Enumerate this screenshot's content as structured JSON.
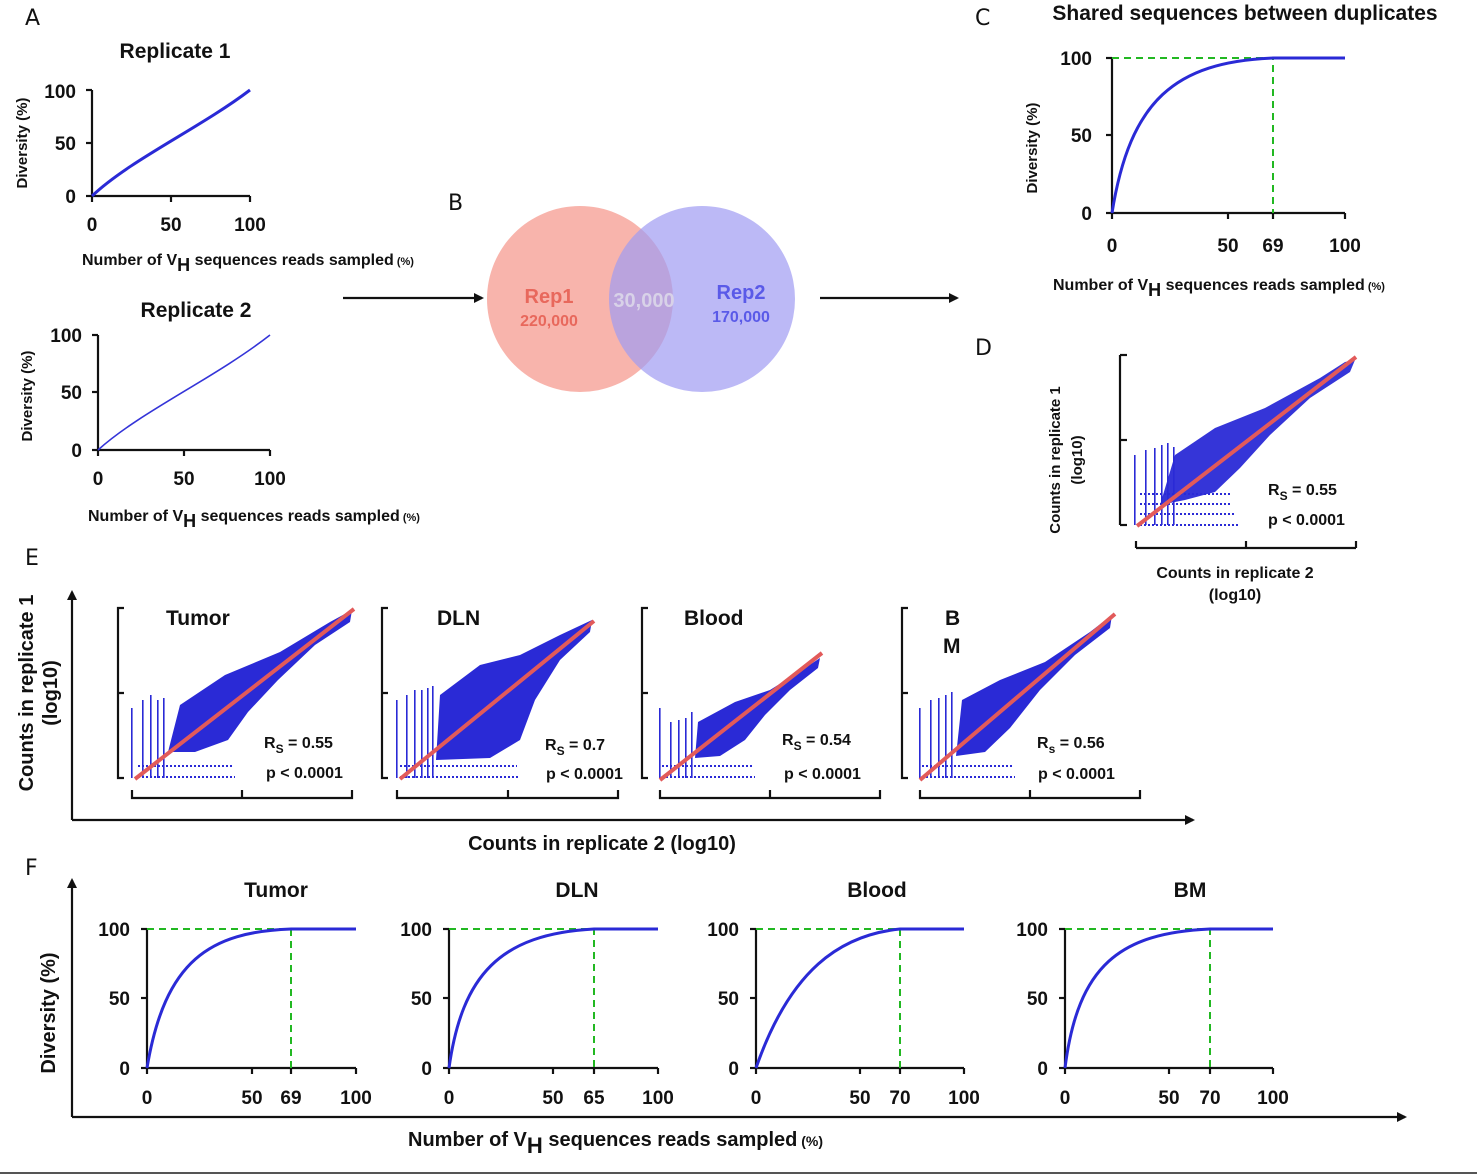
{
  "figure": {
    "panel_labels": [
      "A",
      "B",
      "C",
      "D",
      "E",
      "F"
    ],
    "colors": {
      "curve": "#2a2ad6",
      "guide": "#22b822",
      "diagonal": "#e25a5a",
      "rep1_fill": "#f7a79d",
      "rep2_fill": "#9f9bf2",
      "rep1_text": "#e8685c",
      "rep2_text": "#5a5ae8",
      "overlap_text": "#d8d2e8"
    },
    "panel_a": {
      "replicate1_title": "Replicate 1",
      "replicate2_title": "Replicate 2",
      "ylabel": "Diversity (%)",
      "xlabel_prefix": "Number of V",
      "xlabel_sub": "H",
      "xlabel_main": " sequences reads  sampled",
      "xlabel_unit": " (%)",
      "ticks": [
        "0",
        "50",
        "100"
      ]
    },
    "panel_b": {
      "rep1_name": "Rep1",
      "rep1_count": "220,000",
      "overlap": "30,000",
      "rep2_name": "Rep2",
      "rep2_count": "170,000"
    },
    "panel_c": {
      "title": "Shared sequences between duplicates",
      "ylabel": "Diversity (%)",
      "yticks": [
        "0",
        "50",
        "100"
      ],
      "xticks": [
        "0",
        "50",
        "69",
        "100"
      ]
    },
    "panel_d": {
      "ylabel_line1": "Counts in replicate 1",
      "ylabel_line2": "(log10)",
      "xlabel_line1": "Counts in replicate 2",
      "xlabel_line2": "(log10)",
      "rs_prefix": "R",
      "rs_sub": "S",
      "rs_value": " = 0.55",
      "pvalue": "p < 0.0001"
    },
    "panel_e": {
      "ylabel_line1": "Counts in replicate 1",
      "ylabel_line2": "(log10)",
      "xlabel": "Counts in replicate 2 (log10)",
      "tissues": [
        {
          "name": "Tumor",
          "rs_sub": "S",
          "rs_value": " = 0.55",
          "pvalue": "p < 0.0001"
        },
        {
          "name": "DLN",
          "rs_sub": "S",
          "rs_value": " = 0.7",
          "pvalue": "p < 0.0001"
        },
        {
          "name": "Blood",
          "rs_sub": "S",
          "rs_value": " = 0.54",
          "pvalue": "p < 0.0001"
        },
        {
          "name_line1": "B",
          "name_line2": "M",
          "rs_sub": "s",
          "rs_value": " = 0.56",
          "pvalue": "p < 0.0001"
        }
      ]
    },
    "panel_f": {
      "ylabel": "Diversity (%)",
      "yticks": [
        "0",
        "50",
        "100"
      ],
      "plots": [
        {
          "title": "Tumor",
          "xticks": [
            "0",
            "50",
            "69",
            "100"
          ]
        },
        {
          "title": "DLN",
          "xticks": [
            "0",
            "50",
            "65",
            "100"
          ]
        },
        {
          "title": "Blood",
          "xticks": [
            "0",
            "50",
            "70",
            "100"
          ]
        },
        {
          "title": "BM",
          "xticks": [
            "0",
            "50",
            "70",
            "100"
          ]
        }
      ]
    }
  },
  "chart_data": [
    {
      "panel": "A",
      "type": "line",
      "title": "Replicate 1",
      "xlabel": "Number of VH sequences reads sampled (%)",
      "ylabel": "Diversity (%)",
      "xlim": [
        0,
        100
      ],
      "ylim": [
        0,
        100
      ],
      "x": [
        0,
        25,
        50,
        75,
        100
      ],
      "y": [
        0,
        28,
        53,
        77,
        100
      ]
    },
    {
      "panel": "A",
      "type": "line",
      "title": "Replicate 2",
      "xlabel": "Number of VH sequences reads sampled (%)",
      "ylabel": "Diversity (%)",
      "xlim": [
        0,
        100
      ],
      "ylim": [
        0,
        100
      ],
      "x": [
        0,
        25,
        50,
        75,
        100
      ],
      "y": [
        0,
        29,
        54,
        78,
        100
      ]
    },
    {
      "panel": "C",
      "type": "line",
      "title": "Shared sequences between duplicates",
      "ylabel": "Diversity (%)",
      "xlim": [
        0,
        100
      ],
      "ylim": [
        0,
        100
      ],
      "saturation_x": 69,
      "x": [
        0,
        10,
        20,
        30,
        40,
        50,
        69,
        100
      ],
      "y": [
        0,
        45,
        70,
        84,
        92,
        96,
        99.5,
        100
      ]
    },
    {
      "panel": "D",
      "type": "scatter",
      "xlabel": "Counts in replicate 2 (log10)",
      "ylabel": "Counts in replicate 1 (log10)",
      "rs": 0.55,
      "p": "< 0.0001"
    },
    {
      "panel": "E",
      "type": "scatter",
      "title": "Tumor",
      "rs": 0.55,
      "p": "< 0.0001"
    },
    {
      "panel": "E",
      "type": "scatter",
      "title": "DLN",
      "rs": 0.7,
      "p": "< 0.0001"
    },
    {
      "panel": "E",
      "type": "scatter",
      "title": "Blood",
      "rs": 0.54,
      "p": "< 0.0001"
    },
    {
      "panel": "E",
      "type": "scatter",
      "title": "BM",
      "rs": 0.56,
      "p": "< 0.0001"
    },
    {
      "panel": "F",
      "type": "line",
      "title": "Tumor",
      "ylabel": "Diversity (%)",
      "xlim": [
        0,
        100
      ],
      "ylim": [
        0,
        100
      ],
      "saturation_x": 69
    },
    {
      "panel": "F",
      "type": "line",
      "title": "DLN",
      "ylabel": "Diversity (%)",
      "xlim": [
        0,
        100
      ],
      "ylim": [
        0,
        100
      ],
      "saturation_x": 65
    },
    {
      "panel": "F",
      "type": "line",
      "title": "Blood",
      "ylabel": "Diversity (%)",
      "xlim": [
        0,
        100
      ],
      "ylim": [
        0,
        100
      ],
      "saturation_x": 70
    },
    {
      "panel": "F",
      "type": "line",
      "title": "BM",
      "ylabel": "Diversity (%)",
      "xlim": [
        0,
        100
      ],
      "ylim": [
        0,
        100
      ],
      "saturation_x": 70
    }
  ]
}
